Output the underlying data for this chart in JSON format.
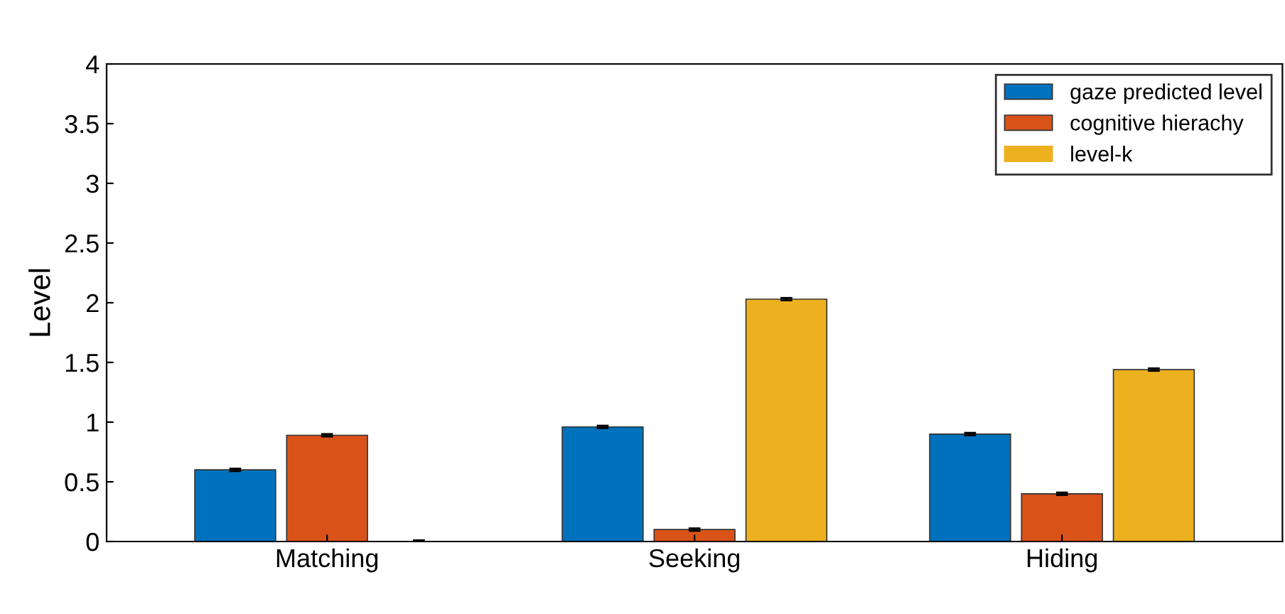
{
  "chart_data": {
    "type": "bar",
    "ylabel": "Level",
    "categories": [
      "Matching",
      "Seeking",
      "Hiding"
    ],
    "series": [
      {
        "name": "gaze predicted level",
        "color": "#0072bd",
        "values": [
          0.6,
          0.96,
          0.9
        ],
        "errors": [
          0.01,
          0.01,
          0.01
        ]
      },
      {
        "name": "cognitive hierachy",
        "color": "#d95319",
        "values": [
          0.89,
          0.1,
          0.4
        ],
        "errors": [
          0.01,
          0.01,
          0.01
        ]
      },
      {
        "name": "level-k",
        "color": "#edb120",
        "values": [
          0,
          2.03,
          1.44
        ],
        "errors": [
          0.01,
          0.01,
          0.01
        ]
      }
    ],
    "ylim": [
      0,
      4
    ],
    "yticks": [
      0,
      0.5,
      1,
      1.5,
      2,
      2.5,
      3,
      3.5,
      4
    ],
    "grid": false,
    "legend": "top right"
  }
}
